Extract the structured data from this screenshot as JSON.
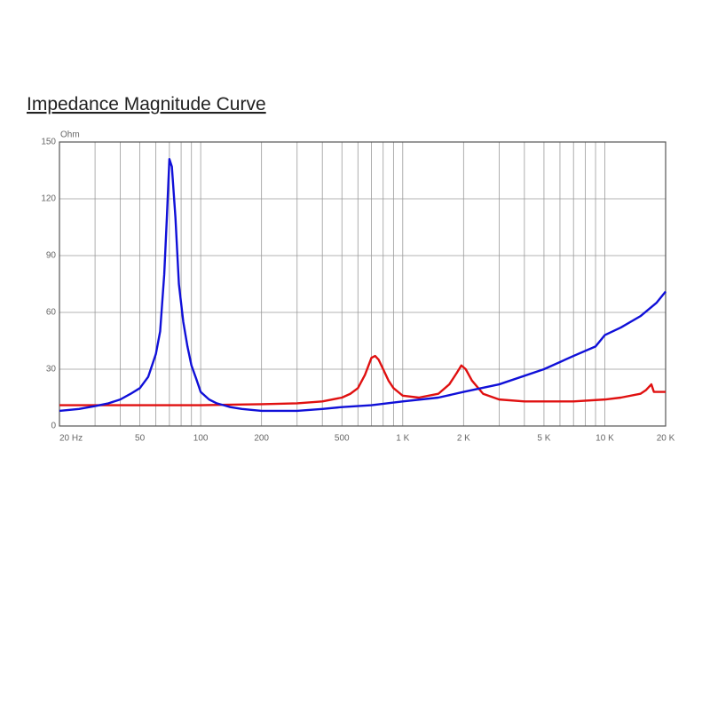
{
  "chart_data": {
    "type": "line",
    "title": "Impedance Magnitude Curve",
    "y_label": "Ohm",
    "log_x": true,
    "xlim": [
      20,
      20000
    ],
    "ylim": [
      0,
      150
    ],
    "xticks": [
      {
        "value": 20,
        "label": "20 Hz"
      },
      50,
      100,
      200,
      500,
      {
        "value": 1000,
        "label": "1 K"
      },
      {
        "value": 2000,
        "label": "2 K"
      },
      {
        "value": 5000,
        "label": "5 K"
      },
      {
        "value": 10000,
        "label": "10 K"
      },
      {
        "value": 20000,
        "label": "20 K"
      }
    ],
    "xgrid": [
      30,
      40,
      60,
      70,
      80,
      90,
      300,
      400,
      600,
      700,
      800,
      900,
      3000,
      4000,
      6000,
      7000,
      8000,
      9000
    ],
    "yticks": [
      0,
      30,
      60,
      90,
      120,
      150
    ],
    "grid": true,
    "series": [
      {
        "color": "#1010d8",
        "x": [
          20,
          25,
          30,
          35,
          40,
          45,
          50,
          55,
          60,
          63,
          66,
          68,
          70,
          72,
          75,
          78,
          82,
          86,
          90,
          95,
          100,
          110,
          120,
          140,
          160,
          200,
          300,
          400,
          500,
          700,
          1000,
          1500,
          2000,
          3000,
          5000,
          7000,
          9000,
          10000,
          12000,
          15000,
          18000,
          20000
        ],
        "values": [
          8,
          9,
          10.5,
          12,
          14,
          17,
          20,
          26,
          38,
          50,
          80,
          110,
          141,
          137,
          110,
          75,
          55,
          42,
          32,
          25,
          18,
          14,
          12,
          10,
          9,
          8,
          8,
          9,
          10,
          11,
          13,
          15,
          18,
          22,
          30,
          37,
          42,
          48,
          52,
          58,
          65,
          71
        ]
      },
      {
        "color": "#e01010",
        "x": [
          20,
          100,
          200,
          300,
          400,
          500,
          550,
          600,
          650,
          700,
          730,
          760,
          800,
          850,
          900,
          1000,
          1200,
          1500,
          1700,
          1850,
          1950,
          2050,
          2200,
          2500,
          3000,
          4000,
          5000,
          7000,
          10000,
          12000,
          15000,
          16000,
          17000,
          17500,
          20000
        ],
        "values": [
          11,
          11,
          11.5,
          12,
          13,
          15,
          17,
          20,
          27,
          36,
          37,
          35,
          30,
          24,
          20,
          16,
          15,
          17,
          22,
          28,
          32,
          30,
          24,
          17,
          14,
          13,
          13,
          13,
          14,
          15,
          17,
          19,
          22,
          18,
          18
        ]
      }
    ]
  }
}
